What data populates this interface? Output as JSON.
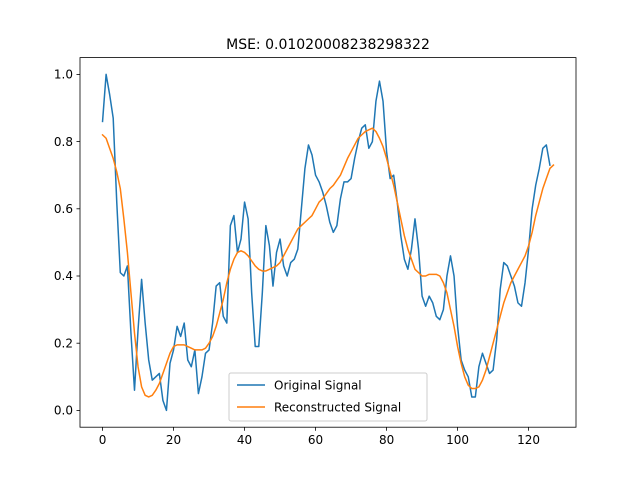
{
  "chart_data": {
    "type": "line",
    "title": "MSE: 0.01020008238298322",
    "xlabel": "",
    "ylabel": "",
    "xlim": [
      -6.35,
      133.35
    ],
    "ylim": [
      -0.05,
      1.05
    ],
    "xticks": [
      0,
      20,
      40,
      60,
      80,
      100,
      120
    ],
    "yticks": [
      0.0,
      0.2,
      0.4,
      0.6,
      0.8,
      1.0
    ],
    "xtick_labels": [
      "0",
      "20",
      "40",
      "60",
      "80",
      "100",
      "120"
    ],
    "ytick_labels": [
      "0.0",
      "0.2",
      "0.4",
      "0.6",
      "0.8",
      "1.0"
    ],
    "grid": false,
    "legend_position": "lower center",
    "series": [
      {
        "name": "Original Signal",
        "color": "#1f77b4",
        "values": [
          0.86,
          1.0,
          0.94,
          0.87,
          0.62,
          0.41,
          0.4,
          0.43,
          0.23,
          0.06,
          0.24,
          0.39,
          0.26,
          0.15,
          0.09,
          0.1,
          0.11,
          0.03,
          0.0,
          0.14,
          0.18,
          0.25,
          0.22,
          0.26,
          0.15,
          0.13,
          0.18,
          0.05,
          0.1,
          0.17,
          0.18,
          0.26,
          0.37,
          0.38,
          0.28,
          0.26,
          0.55,
          0.58,
          0.47,
          0.51,
          0.62,
          0.57,
          0.35,
          0.19,
          0.19,
          0.35,
          0.55,
          0.49,
          0.37,
          0.47,
          0.51,
          0.43,
          0.4,
          0.44,
          0.45,
          0.48,
          0.6,
          0.72,
          0.79,
          0.76,
          0.7,
          0.68,
          0.65,
          0.61,
          0.56,
          0.53,
          0.55,
          0.63,
          0.68,
          0.68,
          0.69,
          0.75,
          0.8,
          0.84,
          0.85,
          0.78,
          0.8,
          0.92,
          0.98,
          0.92,
          0.77,
          0.69,
          0.7,
          0.62,
          0.52,
          0.45,
          0.42,
          0.48,
          0.57,
          0.48,
          0.34,
          0.31,
          0.34,
          0.32,
          0.28,
          0.27,
          0.3,
          0.4,
          0.46,
          0.4,
          0.25,
          0.15,
          0.12,
          0.1,
          0.04,
          0.04,
          0.13,
          0.17,
          0.14,
          0.11,
          0.12,
          0.21,
          0.36,
          0.44,
          0.43,
          0.4,
          0.37,
          0.32,
          0.31,
          0.38,
          0.48,
          0.6,
          0.67,
          0.72,
          0.78,
          0.79,
          0.73
        ]
      },
      {
        "name": "Reconstructed Signal",
        "color": "#ff7f0e",
        "values": [
          0.82,
          0.81,
          0.78,
          0.75,
          0.71,
          0.66,
          0.57,
          0.47,
          0.35,
          0.23,
          0.13,
          0.07,
          0.045,
          0.04,
          0.045,
          0.06,
          0.08,
          0.11,
          0.14,
          0.17,
          0.19,
          0.195,
          0.195,
          0.195,
          0.19,
          0.185,
          0.18,
          0.18,
          0.18,
          0.185,
          0.2,
          0.22,
          0.25,
          0.29,
          0.33,
          0.38,
          0.42,
          0.45,
          0.47,
          0.475,
          0.47,
          0.46,
          0.445,
          0.43,
          0.42,
          0.415,
          0.415,
          0.42,
          0.425,
          0.43,
          0.44,
          0.46,
          0.48,
          0.5,
          0.52,
          0.54,
          0.55,
          0.56,
          0.57,
          0.58,
          0.6,
          0.62,
          0.63,
          0.645,
          0.66,
          0.67,
          0.685,
          0.7,
          0.725,
          0.75,
          0.77,
          0.79,
          0.81,
          0.82,
          0.83,
          0.835,
          0.84,
          0.83,
          0.81,
          0.785,
          0.75,
          0.71,
          0.67,
          0.62,
          0.57,
          0.52,
          0.48,
          0.45,
          0.42,
          0.41,
          0.4,
          0.4,
          0.405,
          0.405,
          0.405,
          0.4,
          0.38,
          0.35,
          0.3,
          0.25,
          0.19,
          0.14,
          0.1,
          0.075,
          0.065,
          0.065,
          0.07,
          0.09,
          0.12,
          0.16,
          0.2,
          0.24,
          0.28,
          0.32,
          0.35,
          0.38,
          0.4,
          0.42,
          0.44,
          0.46,
          0.49,
          0.53,
          0.58,
          0.62,
          0.66,
          0.69,
          0.72,
          0.73
        ]
      }
    ]
  }
}
